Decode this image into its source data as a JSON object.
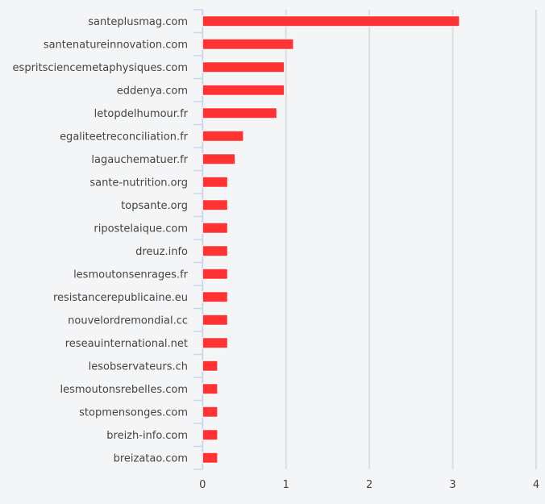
{
  "chart_data": {
    "type": "bar",
    "orientation": "horizontal",
    "categories": [
      "santeplusmag.com",
      "santenatureinnovation.com",
      "espritsciencemetaphysiques.com",
      "eddenya.com",
      "letopdelhumour.fr",
      "egaliteetreconciliation.fr",
      "lagauchematuer.fr",
      "sante-nutrition.org",
      "topsante.org",
      "ripostelaique.com",
      "dreuz.info",
      "lesmoutonsenrages.fr",
      "resistancerepublicaine.eu",
      "nouvelordremondial.cc",
      "reseauinternational.net",
      "lesobservateurs.ch",
      "lesmoutonsrebelles.com",
      "stopmensonges.com",
      "breizh-info.com",
      "breizatao.com"
    ],
    "values": [
      3.08,
      1.09,
      0.98,
      0.98,
      0.89,
      0.49,
      0.39,
      0.3,
      0.3,
      0.3,
      0.3,
      0.3,
      0.3,
      0.3,
      0.3,
      0.18,
      0.18,
      0.18,
      0.18,
      0.18
    ],
    "xlim": [
      0,
      4
    ],
    "xticks": [
      "0",
      "1",
      "2",
      "3",
      "4"
    ],
    "grid": true,
    "bar_color": "#ff3333",
    "title": "",
    "xlabel": "",
    "ylabel": ""
  }
}
